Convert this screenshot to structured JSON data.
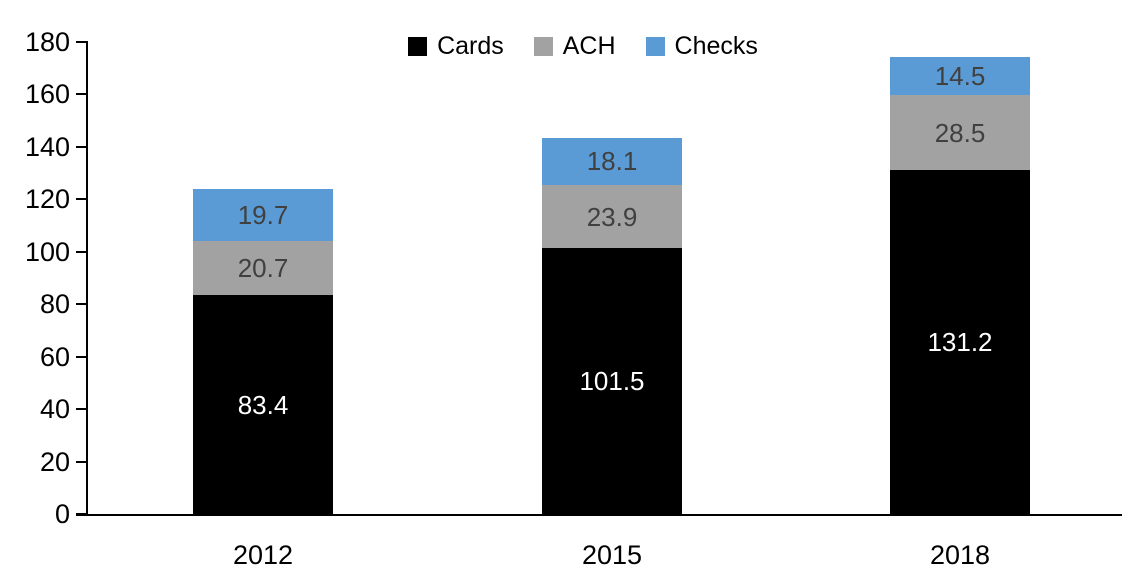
{
  "chart_data": {
    "type": "bar",
    "stacked": true,
    "title": "",
    "xlabel": "",
    "ylabel": "",
    "categories": [
      "2012",
      "2015",
      "2018"
    ],
    "series": [
      {
        "name": "Cards",
        "values": [
          83.4,
          101.5,
          131.2
        ],
        "color": "#000000",
        "label_color": "#ffffff"
      },
      {
        "name": "ACH",
        "values": [
          20.7,
          23.9,
          28.5
        ],
        "color": "#a2a2a2",
        "label_color": "#404040"
      },
      {
        "name": "Checks",
        "values": [
          19.7,
          18.1,
          14.5
        ],
        "color": "#5b9bd5",
        "label_color": "#404040"
      }
    ],
    "ylim": [
      0,
      180
    ],
    "ytick_step": 20,
    "ytick_labels": [
      "0",
      "20",
      "40",
      "60",
      "80",
      "100",
      "120",
      "140",
      "160",
      "180"
    ],
    "grid": false,
    "legend_position": "top",
    "value_labels": true,
    "axis_color": "#000000"
  }
}
